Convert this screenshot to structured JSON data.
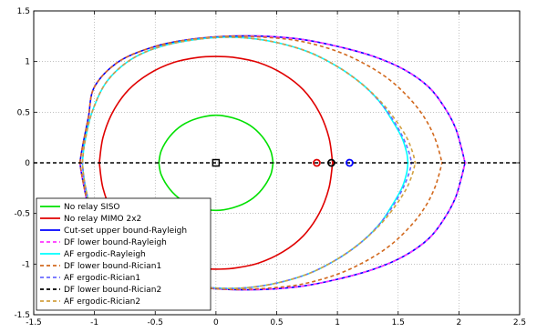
{
  "chart_data": {
    "type": "line",
    "title": "",
    "xlabel": "",
    "ylabel": "",
    "xlim": [
      -1.5,
      2.5
    ],
    "ylim": [
      -1.5,
      1.5
    ],
    "x_ticks": [
      -1.5,
      -1,
      -0.5,
      0,
      0.5,
      1,
      1.5,
      2,
      2.5
    ],
    "x_tick_labels": [
      "-1.5",
      "-1",
      "-0.5",
      "0",
      "0.5",
      "1",
      "1.5",
      "2",
      "2.5"
    ],
    "y_ticks": [
      -1.5,
      -1,
      -0.5,
      0,
      0.5,
      1,
      1.5
    ],
    "y_tick_labels": [
      "-1.5",
      "-1",
      "-0.5",
      "0",
      "0.5",
      "1",
      "1.5"
    ],
    "grid": true,
    "legend_position": "bottom-left",
    "series": [
      {
        "name": "No relay SISO",
        "color": "#00e000",
        "style": "solid",
        "x": [
          -0.47,
          -0.45,
          -0.38,
          -0.28,
          -0.15,
          0,
          0.15,
          0.28,
          0.38,
          0.45,
          0.47
        ],
        "y": [
          0,
          0.12,
          0.26,
          0.37,
          0.44,
          0.47,
          0.44,
          0.37,
          0.26,
          0.12,
          0
        ]
      },
      {
        "name": "No relay MIMO 2x2",
        "color": "#e00000",
        "style": "solid",
        "x": [
          -0.96,
          -0.93,
          -0.85,
          -0.72,
          -0.55,
          -0.35,
          -0.15,
          0,
          0.15,
          0.35,
          0.55,
          0.72,
          0.85,
          0.93,
          0.96
        ],
        "y": [
          0,
          0.25,
          0.5,
          0.72,
          0.88,
          0.99,
          1.04,
          1.05,
          1.04,
          0.99,
          0.88,
          0.72,
          0.5,
          0.25,
          0
        ]
      },
      {
        "name": "Cut-set upper bound-Rayleigh",
        "color": "#0000ff",
        "style": "solid",
        "x": [
          -1.12,
          -1.1,
          -1.05,
          -1,
          -0.8,
          -0.5,
          -0.2,
          0.1,
          0.4,
          0.7,
          1.0,
          1.3,
          1.55,
          1.75,
          1.88,
          1.97,
          2.02,
          2.05
        ],
        "y": [
          0,
          0.15,
          0.45,
          0.75,
          1.0,
          1.15,
          1.22,
          1.25,
          1.25,
          1.22,
          1.15,
          1.05,
          0.92,
          0.75,
          0.55,
          0.35,
          0.15,
          0
        ]
      },
      {
        "name": "DF lower bound-Rayleigh",
        "color": "#ff33ff",
        "style": "dashed",
        "x": [
          -1.12,
          -1.1,
          -1.05,
          -1,
          -0.8,
          -0.5,
          -0.2,
          0.1,
          0.4,
          0.7,
          1.0,
          1.3,
          1.55,
          1.75,
          1.88,
          1.97,
          2.02,
          2.05
        ],
        "y": [
          0,
          0.15,
          0.45,
          0.75,
          1.0,
          1.15,
          1.22,
          1.25,
          1.25,
          1.22,
          1.15,
          1.05,
          0.92,
          0.75,
          0.55,
          0.35,
          0.15,
          0
        ]
      },
      {
        "name": "AF ergodic-Rayleigh",
        "color": "#00ffff",
        "style": "solid",
        "x": [
          -1.1,
          -1.08,
          -1.02,
          -0.9,
          -0.7,
          -0.45,
          -0.15,
          0.15,
          0.45,
          0.75,
          1.0,
          1.2,
          1.35,
          1.45,
          1.53,
          1.57,
          1.58
        ],
        "y": [
          0,
          0.2,
          0.5,
          0.8,
          1.02,
          1.15,
          1.22,
          1.24,
          1.2,
          1.1,
          0.95,
          0.78,
          0.6,
          0.42,
          0.25,
          0.1,
          0
        ]
      },
      {
        "name": "DF lower bound-Rician1",
        "color": "#d2691e",
        "style": "dashed",
        "x": [
          -1.12,
          -1.1,
          -1.05,
          -1,
          -0.8,
          -0.5,
          -0.2,
          0.1,
          0.4,
          0.7,
          1.0,
          1.25,
          1.45,
          1.62,
          1.73,
          1.8,
          1.84,
          1.86
        ],
        "y": [
          0,
          0.15,
          0.45,
          0.75,
          1.0,
          1.15,
          1.22,
          1.25,
          1.24,
          1.2,
          1.1,
          0.96,
          0.8,
          0.6,
          0.42,
          0.25,
          0.1,
          0
        ]
      },
      {
        "name": "AF ergodic-Rician1",
        "color": "#6a6aff",
        "style": "dashed",
        "x": [
          -1.1,
          -1.08,
          -1.02,
          -0.9,
          -0.7,
          -0.45,
          -0.15,
          0.15,
          0.45,
          0.75,
          1.0,
          1.2,
          1.35,
          1.46,
          1.54,
          1.59,
          1.61
        ],
        "y": [
          0,
          0.2,
          0.5,
          0.8,
          1.02,
          1.15,
          1.22,
          1.24,
          1.2,
          1.1,
          0.95,
          0.78,
          0.6,
          0.42,
          0.25,
          0.1,
          0
        ]
      },
      {
        "name": "DF lower bound-Rician2",
        "color": "#000000",
        "style": "dashed",
        "x": [
          -1.5,
          2.5
        ],
        "y": [
          0,
          0
        ]
      },
      {
        "name": "AF ergodic-Rician2",
        "color": "#d2a040",
        "style": "dashed",
        "x": [
          -1.1,
          -1.08,
          -1.02,
          -0.9,
          -0.7,
          -0.45,
          -0.15,
          0.15,
          0.45,
          0.75,
          1.0,
          1.2,
          1.36,
          1.48,
          1.57,
          1.62,
          1.64
        ],
        "y": [
          0,
          0.2,
          0.5,
          0.8,
          1.02,
          1.15,
          1.22,
          1.24,
          1.2,
          1.1,
          0.95,
          0.78,
          0.6,
          0.42,
          0.25,
          0.1,
          0
        ]
      }
    ],
    "markers": [
      {
        "shape": "square",
        "color": "#000000",
        "x": 0,
        "y": 0
      },
      {
        "shape": "circle",
        "color": "#e00000",
        "x": 0.83,
        "y": 0
      },
      {
        "shape": "circle",
        "color": "#000000",
        "x": 0.95,
        "y": 0
      },
      {
        "shape": "circle",
        "color": "#0000ff",
        "x": 1.1,
        "y": 0
      }
    ]
  }
}
